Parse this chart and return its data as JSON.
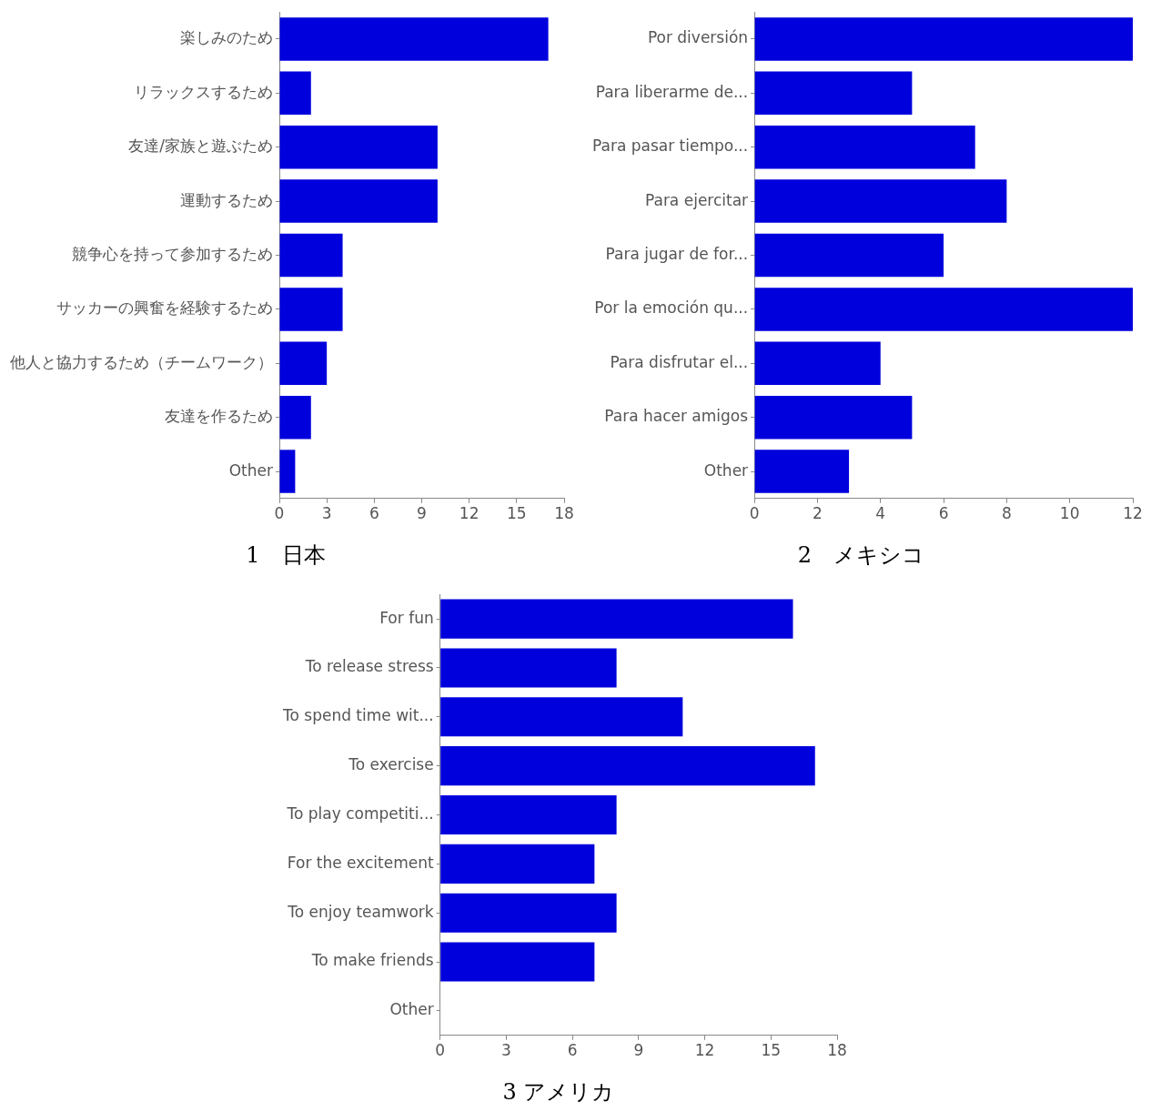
{
  "chart_data": [
    {
      "type": "bar",
      "orientation": "horizontal",
      "title": "1　日本",
      "categories": [
        "楽しみのため",
        "リラックスするため",
        "友達/家族と遊ぶため",
        "運動するため",
        "競争心を持って参加するため",
        "サッカーの興奮を経験するため",
        "他人と協力するため（チームワーク）",
        "友達を作るため",
        "Other"
      ],
      "values": [
        17,
        2,
        10,
        10,
        4,
        4,
        3,
        2,
        1
      ],
      "color": "#0000dd",
      "xlim": [
        0,
        18
      ],
      "xticks": [
        0,
        3,
        6,
        9,
        12,
        15,
        18
      ],
      "grid": false
    },
    {
      "type": "bar",
      "orientation": "horizontal",
      "title": "2　メキシコ",
      "categories": [
        "Por diversión",
        "Para liberarme de...",
        "Para pasar tiempo...",
        "Para ejercitar",
        "Para jugar de for...",
        "Por la emoción qu...",
        "Para disfrutar el...",
        "Para hacer amigos",
        "Other"
      ],
      "values": [
        12,
        5,
        7,
        8,
        6,
        12,
        4,
        5,
        3
      ],
      "color": "#0000dd",
      "xlim": [
        0,
        12
      ],
      "xticks": [
        0,
        2,
        4,
        6,
        8,
        10,
        12
      ],
      "grid": false
    },
    {
      "type": "bar",
      "orientation": "horizontal",
      "title": "3 アメリカ",
      "categories": [
        "For fun",
        "To release stress",
        "To spend time wit...",
        "To exercise",
        "To play competiti...",
        "For the excitement",
        "To enjoy teamwork",
        "To make friends",
        "Other"
      ],
      "values": [
        16,
        8,
        11,
        17,
        8,
        7,
        8,
        7,
        0
      ],
      "color": "#0000dd",
      "xlim": [
        0,
        18
      ],
      "xticks": [
        0,
        3,
        6,
        9,
        12,
        15,
        18
      ],
      "grid": false
    }
  ]
}
